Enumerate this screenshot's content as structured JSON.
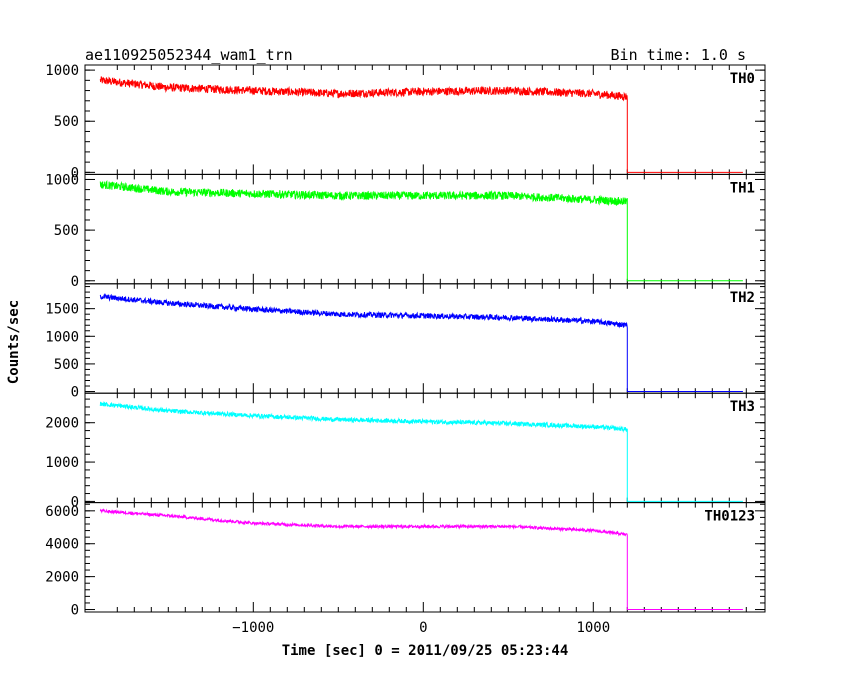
{
  "header": {
    "left_title": "ae110925052344_wam1_trn",
    "right_title": "Bin time: 1.0 s"
  },
  "chart_data": {
    "type": "line",
    "xlabel": "Time [sec] 0 = 2011/09/25 05:23:44",
    "ylabel": "Counts/sec",
    "xlim": [
      -1990,
      2010
    ],
    "xticks": [
      -1000,
      0,
      1000
    ],
    "bin_time_s": 1.0,
    "panels": [
      {
        "name": "TH0",
        "color": "#ff0000",
        "ylim": [
          -20,
          1050
        ],
        "yticks": [
          0,
          500,
          1000
        ],
        "trend": [
          [
            -1900,
            900
          ],
          [
            -1500,
            830
          ],
          [
            -1000,
            800
          ],
          [
            -500,
            770
          ],
          [
            0,
            790
          ],
          [
            500,
            800
          ],
          [
            1000,
            770
          ],
          [
            1200,
            740
          ]
        ],
        "noise": 40,
        "after_drop": 0
      },
      {
        "name": "TH1",
        "color": "#00ff00",
        "ylim": [
          -30,
          1050
        ],
        "yticks": [
          0,
          500,
          1000
        ],
        "trend": [
          [
            -1900,
            950
          ],
          [
            -1500,
            880
          ],
          [
            -1000,
            860
          ],
          [
            -500,
            840
          ],
          [
            0,
            840
          ],
          [
            500,
            840
          ],
          [
            1000,
            800
          ],
          [
            1200,
            780
          ]
        ],
        "noise": 40,
        "after_drop": 0
      },
      {
        "name": "TH2",
        "color": "#0000ff",
        "ylim": [
          -30,
          1950
        ],
        "yticks": [
          0,
          500,
          1000,
          1500
        ],
        "trend": [
          [
            -1900,
            1720
          ],
          [
            -1500,
            1600
          ],
          [
            -1000,
            1490
          ],
          [
            -500,
            1400
          ],
          [
            0,
            1370
          ],
          [
            500,
            1340
          ],
          [
            1000,
            1270
          ],
          [
            1200,
            1200
          ]
        ],
        "noise": 50,
        "after_drop": 0
      },
      {
        "name": "TH3",
        "color": "#00ffff",
        "ylim": [
          -30,
          2750
        ],
        "yticks": [
          0,
          1000,
          2000
        ],
        "trend": [
          [
            -1900,
            2480
          ],
          [
            -1500,
            2300
          ],
          [
            -1000,
            2180
          ],
          [
            -500,
            2080
          ],
          [
            0,
            2030
          ],
          [
            500,
            1980
          ],
          [
            1000,
            1900
          ],
          [
            1200,
            1830
          ]
        ],
        "noise": 55,
        "after_drop": 0
      },
      {
        "name": "TH0123",
        "color": "#ff00ff",
        "ylim": [
          -150,
          6500
        ],
        "yticks": [
          0,
          2000,
          4000,
          6000
        ],
        "trend": [
          [
            -1900,
            6000
          ],
          [
            -1500,
            5700
          ],
          [
            -1000,
            5250
          ],
          [
            -500,
            5050
          ],
          [
            0,
            5050
          ],
          [
            500,
            5050
          ],
          [
            1000,
            4800
          ],
          [
            1200,
            4550
          ]
        ],
        "noise": 90,
        "after_drop": 0
      }
    ],
    "data_start": -1900,
    "data_drop": 1200,
    "data_end": 1880
  }
}
